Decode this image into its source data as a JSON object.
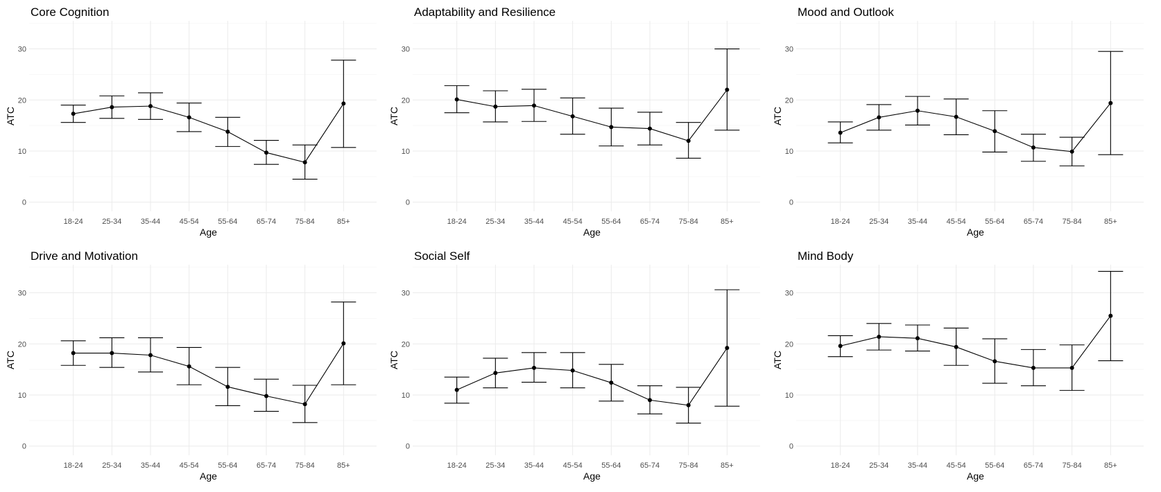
{
  "chart_data": [
    {
      "type": "line",
      "title": "Core Cognition",
      "xlabel": "Age",
      "ylabel": "ATC",
      "categories": [
        "18-24",
        "25-34",
        "35-44",
        "45-54",
        "55-64",
        "65-74",
        "75-84",
        "85+"
      ],
      "values": [
        17.3,
        18.6,
        18.8,
        16.6,
        13.8,
        9.7,
        7.8,
        19.3
      ],
      "lower": [
        15.6,
        16.4,
        16.2,
        13.8,
        10.9,
        7.4,
        4.5,
        10.7
      ],
      "upper": [
        19.0,
        20.8,
        21.4,
        19.4,
        16.6,
        12.1,
        11.2,
        27.8
      ],
      "yticks": [
        0,
        10,
        20,
        30
      ],
      "ylim": [
        -1.8,
        35.5
      ],
      "grid": true
    },
    {
      "type": "line",
      "title": "Adaptability and Resilience",
      "xlabel": "Age",
      "ylabel": "ATC",
      "categories": [
        "18-24",
        "25-34",
        "35-44",
        "45-54",
        "55-64",
        "65-74",
        "75-84",
        "85+"
      ],
      "values": [
        20.1,
        18.7,
        18.9,
        16.8,
        14.7,
        14.4,
        12.0,
        22.0
      ],
      "lower": [
        17.5,
        15.7,
        15.8,
        13.3,
        11.0,
        11.2,
        8.6,
        14.1
      ],
      "upper": [
        22.8,
        21.8,
        22.1,
        20.4,
        18.4,
        17.6,
        15.6,
        30.0
      ],
      "yticks": [
        0,
        10,
        20,
        30
      ],
      "ylim": [
        -1.8,
        35.5
      ],
      "grid": true
    },
    {
      "type": "line",
      "title": "Mood and Outlook",
      "xlabel": "Age",
      "ylabel": "ATC",
      "categories": [
        "18-24",
        "25-34",
        "35-44",
        "45-54",
        "55-64",
        "65-74",
        "75-84",
        "85+"
      ],
      "values": [
        13.6,
        16.6,
        17.9,
        16.7,
        13.9,
        10.7,
        9.9,
        19.4
      ],
      "lower": [
        11.6,
        14.1,
        15.1,
        13.2,
        9.8,
        8.0,
        7.1,
        9.3
      ],
      "upper": [
        15.7,
        19.1,
        20.7,
        20.2,
        17.9,
        13.3,
        12.7,
        29.5
      ],
      "yticks": [
        0,
        10,
        20,
        30
      ],
      "ylim": [
        -1.8,
        35.5
      ],
      "grid": true
    },
    {
      "type": "line",
      "title": "Drive and Motivation",
      "xlabel": "Age",
      "ylabel": "ATC",
      "categories": [
        "18-24",
        "25-34",
        "35-44",
        "45-54",
        "55-64",
        "65-74",
        "75-84",
        "85+"
      ],
      "values": [
        18.2,
        18.2,
        17.8,
        15.6,
        11.6,
        9.8,
        8.2,
        20.1
      ],
      "lower": [
        15.8,
        15.4,
        14.5,
        12.0,
        7.9,
        6.8,
        4.6,
        12.0
      ],
      "upper": [
        20.6,
        21.2,
        21.2,
        19.3,
        15.4,
        13.1,
        11.9,
        28.2
      ],
      "yticks": [
        0,
        10,
        20,
        30
      ],
      "ylim": [
        -1.8,
        35.5
      ],
      "grid": true
    },
    {
      "type": "line",
      "title": "Social Self",
      "xlabel": "Age",
      "ylabel": "ATC",
      "categories": [
        "18-24",
        "25-34",
        "35-44",
        "45-54",
        "55-64",
        "65-74",
        "75-84",
        "85+"
      ],
      "values": [
        11.0,
        14.3,
        15.3,
        14.8,
        12.4,
        9.0,
        8.0,
        19.2
      ],
      "lower": [
        8.4,
        11.4,
        12.5,
        11.4,
        8.8,
        6.3,
        4.5,
        7.8
      ],
      "upper": [
        13.5,
        17.2,
        18.3,
        18.3,
        16.0,
        11.8,
        11.5,
        30.6
      ],
      "yticks": [
        0,
        10,
        20,
        30
      ],
      "ylim": [
        -1.8,
        35.5
      ],
      "grid": true
    },
    {
      "type": "line",
      "title": "Mind Body",
      "xlabel": "Age",
      "ylabel": "ATC",
      "categories": [
        "18-24",
        "25-34",
        "35-44",
        "45-54",
        "55-64",
        "65-74",
        "75-84",
        "85+"
      ],
      "values": [
        19.6,
        21.4,
        21.1,
        19.4,
        16.6,
        15.3,
        15.3,
        25.5
      ],
      "lower": [
        17.5,
        18.8,
        18.6,
        15.8,
        12.3,
        11.8,
        10.9,
        16.7
      ],
      "upper": [
        21.6,
        24.0,
        23.7,
        23.1,
        21.0,
        18.9,
        19.8,
        34.2
      ],
      "yticks": [
        0,
        10,
        20,
        30
      ],
      "ylim": [
        -1.8,
        35.5
      ],
      "grid": true
    }
  ]
}
